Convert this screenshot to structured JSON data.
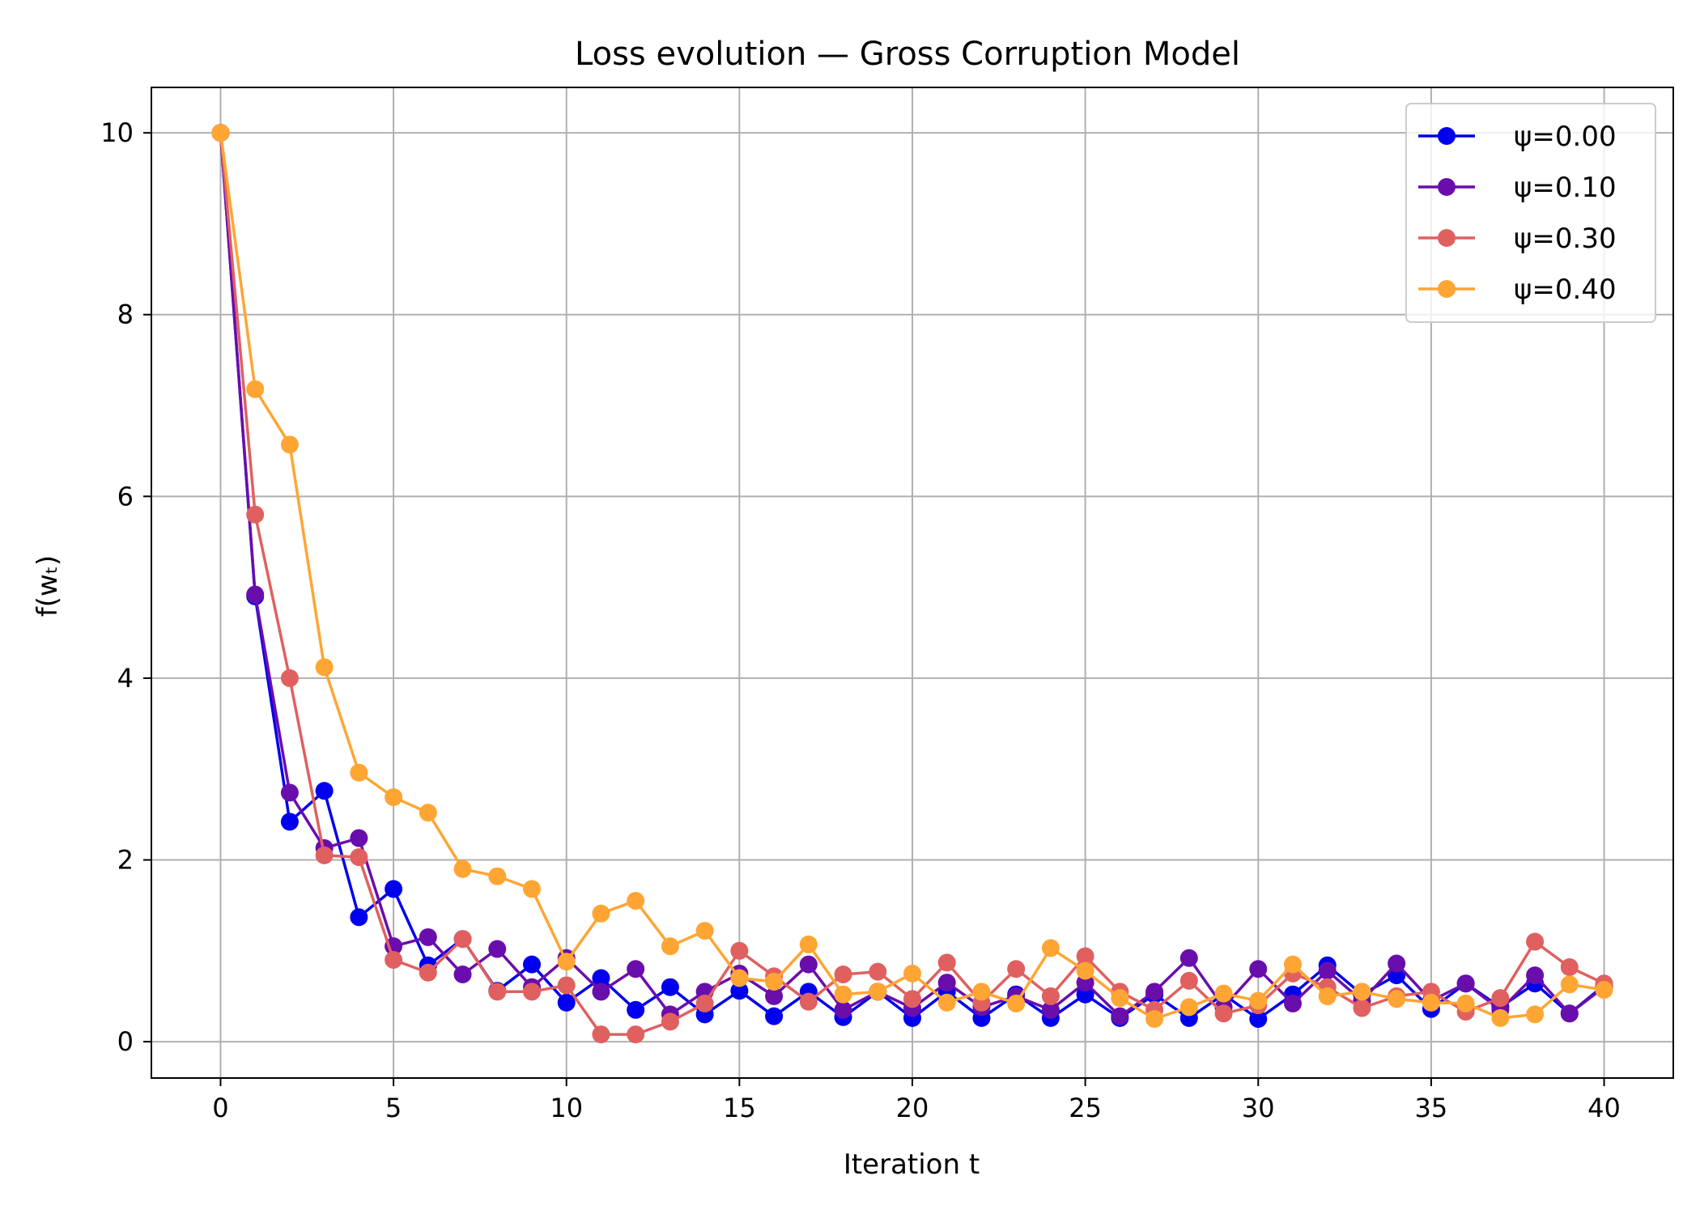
{
  "chart_data": {
    "type": "line",
    "title": "Loss evolution — Gross Corruption Model",
    "xlabel": "Iteration t",
    "ylabel": "f(wₜ)",
    "xlim": [
      -2,
      42
    ],
    "ylim": [
      -0.4,
      10.5
    ],
    "xticks": [
      0,
      5,
      10,
      15,
      20,
      25,
      30,
      35,
      40
    ],
    "yticks": [
      0,
      2,
      4,
      6,
      8,
      10
    ],
    "grid": true,
    "legend_position": "top-right",
    "x": [
      0,
      1,
      2,
      3,
      4,
      5,
      6,
      7,
      8,
      9,
      10,
      11,
      12,
      13,
      14,
      15,
      16,
      17,
      18,
      19,
      20,
      21,
      22,
      23,
      24,
      25,
      26,
      27,
      28,
      29,
      30,
      31,
      32,
      33,
      34,
      35,
      36,
      37,
      38,
      39,
      40
    ],
    "series": [
      {
        "name": "ψ=0.00",
        "color": "#0000ee",
        "values": [
          10.0,
          4.9,
          2.42,
          2.76,
          1.37,
          1.68,
          0.84,
          1.13,
          0.56,
          0.85,
          0.43,
          0.7,
          0.35,
          0.6,
          0.3,
          0.56,
          0.28,
          0.55,
          0.27,
          0.55,
          0.26,
          0.55,
          0.26,
          0.52,
          0.26,
          0.52,
          0.26,
          0.52,
          0.26,
          0.52,
          0.25,
          0.52,
          0.84,
          0.52,
          0.73,
          0.36,
          0.64,
          0.38,
          0.64,
          0.31,
          0.62
        ]
      },
      {
        "name": "ψ=0.10",
        "color": "#6a0dad",
        "values": [
          10.0,
          4.92,
          2.74,
          2.13,
          2.24,
          1.05,
          1.15,
          0.74,
          1.02,
          0.6,
          0.92,
          0.55,
          0.8,
          0.3,
          0.55,
          0.75,
          0.5,
          0.85,
          0.35,
          0.55,
          0.37,
          0.65,
          0.38,
          0.5,
          0.35,
          0.65,
          0.28,
          0.55,
          0.92,
          0.38,
          0.8,
          0.42,
          0.78,
          0.45,
          0.86,
          0.45,
          0.64,
          0.35,
          0.73,
          0.31,
          0.6
        ]
      },
      {
        "name": "ψ=0.30",
        "color": "#e06060",
        "values": [
          10.0,
          5.8,
          4.0,
          2.05,
          2.03,
          0.9,
          0.76,
          1.13,
          0.55,
          0.55,
          0.62,
          0.08,
          0.08,
          0.22,
          0.42,
          1.0,
          0.72,
          0.44,
          0.74,
          0.77,
          0.47,
          0.87,
          0.43,
          0.8,
          0.5,
          0.94,
          0.55,
          0.35,
          0.67,
          0.31,
          0.4,
          0.75,
          0.6,
          0.37,
          0.5,
          0.55,
          0.33,
          0.48,
          1.1,
          0.82,
          0.64
        ]
      },
      {
        "name": "ψ=0.40",
        "color": "#ffa533",
        "values": [
          10.0,
          7.18,
          6.57,
          4.12,
          2.96,
          2.69,
          2.52,
          1.9,
          1.82,
          1.68,
          0.88,
          1.41,
          1.55,
          1.05,
          1.22,
          0.7,
          0.66,
          1.07,
          0.52,
          0.55,
          0.75,
          0.43,
          0.55,
          0.42,
          1.03,
          0.78,
          0.48,
          0.25,
          0.38,
          0.53,
          0.45,
          0.85,
          0.5,
          0.55,
          0.47,
          0.43,
          0.42,
          0.26,
          0.3,
          0.63,
          0.57
        ]
      }
    ]
  }
}
